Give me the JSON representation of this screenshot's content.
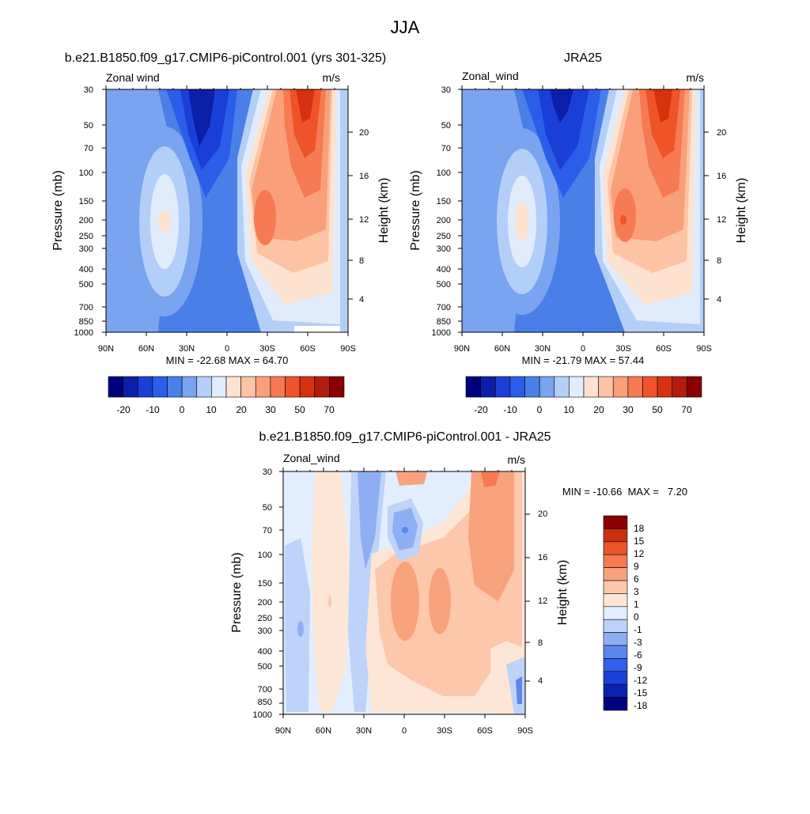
{
  "figure": {
    "title": "JJA"
  },
  "scale_colors": {
    "upper": [
      "#00007f",
      "#0b1fa8",
      "#1a3fd6",
      "#2b5ee8",
      "#4a7fe8",
      "#7aa3f0",
      "#b3cff8",
      "#e0ecfc",
      "#fde2d0",
      "#fcc3a5",
      "#f9a07b",
      "#f67a52",
      "#ee5427",
      "#d6320f",
      "#b01d0d",
      "#8b0000"
    ],
    "diff": [
      "#00007f",
      "#0b22b0",
      "#1a40d6",
      "#3360ea",
      "#5a86ee",
      "#8eaef4",
      "#bdd3f9",
      "#e2eefd",
      "#fde6d6",
      "#fcc7aa",
      "#f9a27e",
      "#f57a50",
      "#ea5427",
      "#c8300f",
      "#8b0000"
    ]
  },
  "chart_data": [
    {
      "type": "heatmap",
      "title": "b.e21.B1850.f09_g17.CMIP6-piControl.001 (yrs 301-325)",
      "variable_label": "Zonal wind",
      "units": "m/s",
      "ylabel": "Pressure (mb)",
      "y2label": "Height (km)",
      "x_ticks": [
        "90N",
        "60N",
        "30N",
        "0",
        "30S",
        "60S",
        "90S"
      ],
      "y_ticks": [
        "30",
        "50",
        "70",
        "100",
        "150",
        "200",
        "250",
        "300",
        "400",
        "500",
        "700",
        "850",
        "1000"
      ],
      "y2_ticks": [
        "20",
        "16",
        "12",
        "8",
        "4"
      ],
      "stats": "MIN = -22.68  MAX = 64.70",
      "colorbar": {
        "labels": [
          "-20",
          "-10",
          "0",
          "10",
          "20",
          "30",
          "50",
          "70"
        ],
        "bins": 16
      }
    },
    {
      "type": "heatmap",
      "title": "JRA25",
      "variable_label": "Zonal_wind",
      "units": "m/s",
      "ylabel": "Pressure (mb)",
      "y2label": "Height (km)",
      "x_ticks": [
        "90N",
        "60N",
        "30N",
        "0",
        "30S",
        "60S",
        "90S"
      ],
      "y_ticks": [
        "30",
        "50",
        "70",
        "100",
        "150",
        "200",
        "250",
        "300",
        "400",
        "500",
        "700",
        "850",
        "1000"
      ],
      "y2_ticks": [
        "20",
        "16",
        "12",
        "8",
        "4"
      ],
      "stats": "MIN = -21.79  MAX = 57.44",
      "colorbar": {
        "labels": [
          "-20",
          "-10",
          "0",
          "10",
          "20",
          "30",
          "50",
          "70"
        ],
        "bins": 16
      }
    },
    {
      "type": "heatmap",
      "title": "b.e21.B1850.f09_g17.CMIP6-piControl.001 - JRA25",
      "variable_label": "Zonal_wind",
      "units": "m/s",
      "ylabel": "Pressure (mb)",
      "y2label": "Height (km)",
      "x_ticks": [
        "90N",
        "60N",
        "30N",
        "0",
        "30S",
        "60S",
        "90S"
      ],
      "y_ticks": [
        "30",
        "50",
        "70",
        "100",
        "150",
        "200",
        "250",
        "300",
        "400",
        "500",
        "700",
        "850",
        "1000"
      ],
      "y2_ticks": [
        "20",
        "16",
        "12",
        "8",
        "4"
      ],
      "stats": "MIN = -10.66  MAX =   7.20",
      "colorbar": {
        "labels": [
          "18",
          "15",
          "12",
          "9",
          "6",
          "3",
          "1",
          "0",
          "-1",
          "-3",
          "-6",
          "-9",
          "-12",
          "-15",
          "-18"
        ],
        "bins": 15
      }
    }
  ]
}
